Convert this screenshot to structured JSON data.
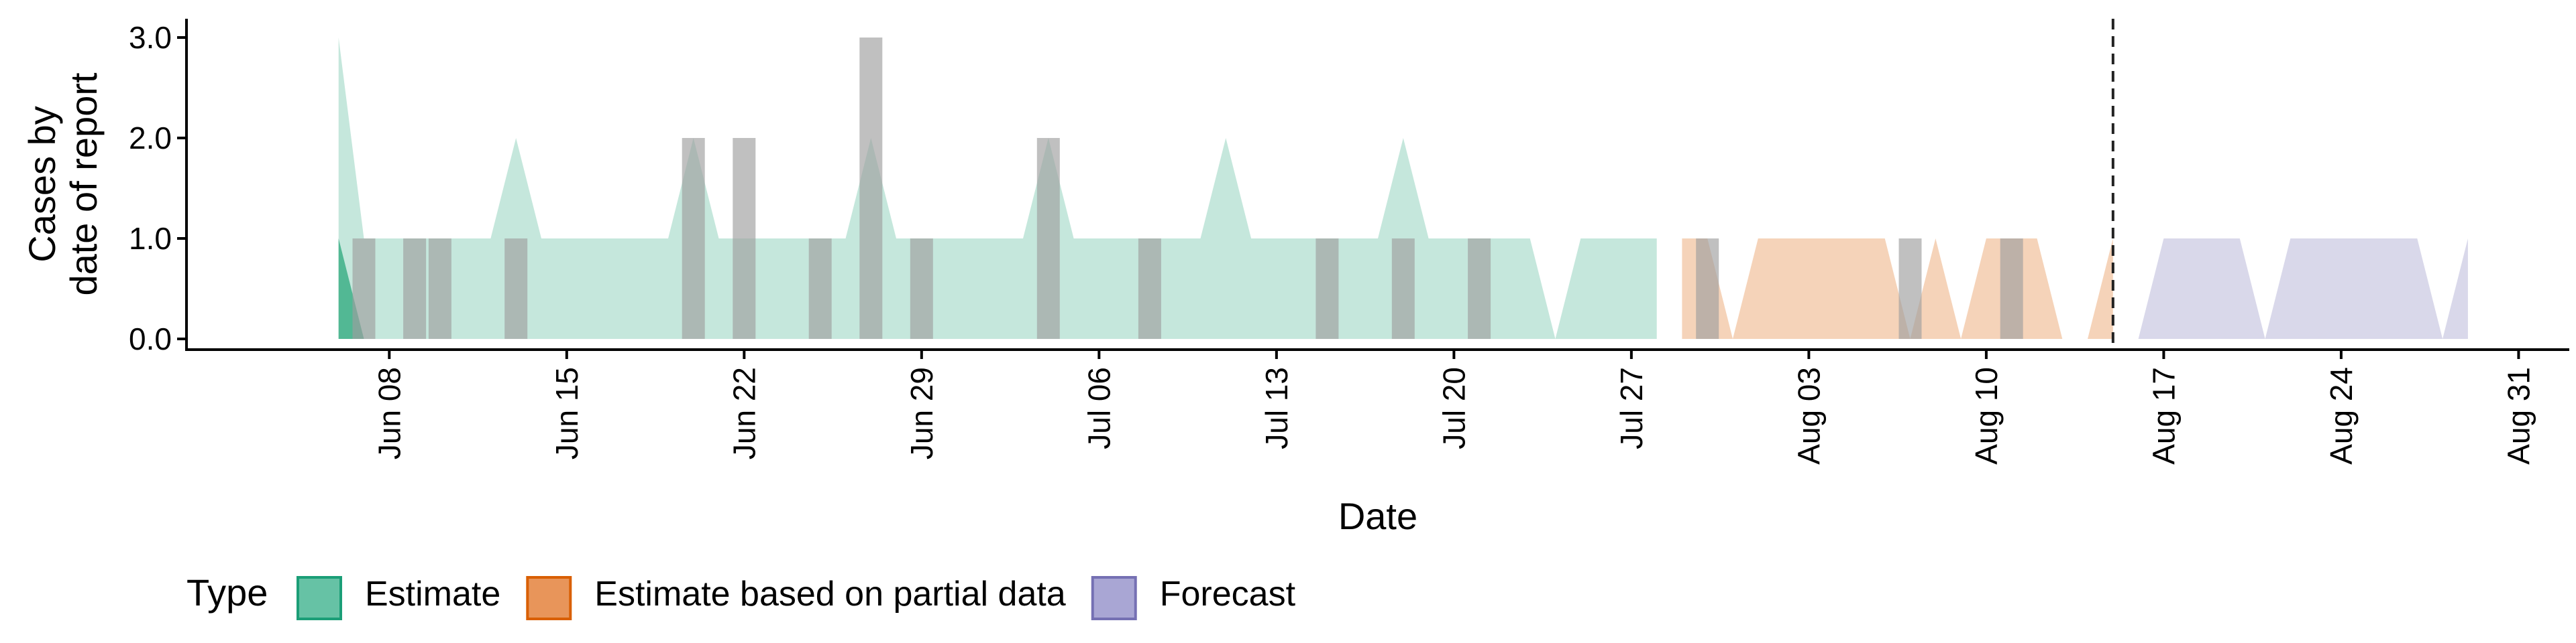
{
  "chart_data": {
    "type": "area",
    "xlabel": "Date",
    "ylabel_lines": [
      "Cases by",
      "date of report"
    ],
    "yticks": [
      "0.0",
      "1.0",
      "2.0",
      "3.0"
    ],
    "ylim": [
      0,
      3.15
    ],
    "xlim": [
      "2020-05-31",
      "2020-09-02"
    ],
    "xticks": [
      {
        "date": "2020-06-08",
        "label": "Jun 08"
      },
      {
        "date": "2020-06-15",
        "label": "Jun 15"
      },
      {
        "date": "2020-06-22",
        "label": "Jun 22"
      },
      {
        "date": "2020-06-29",
        "label": "Jun 29"
      },
      {
        "date": "2020-07-06",
        "label": "Jul 06"
      },
      {
        "date": "2020-07-13",
        "label": "Jul 13"
      },
      {
        "date": "2020-07-20",
        "label": "Jul 20"
      },
      {
        "date": "2020-07-27",
        "label": "Jul 27"
      },
      {
        "date": "2020-08-03",
        "label": "Aug 03"
      },
      {
        "date": "2020-08-10",
        "label": "Aug 10"
      },
      {
        "date": "2020-08-17",
        "label": "Aug 17"
      },
      {
        "date": "2020-08-24",
        "label": "Aug 24"
      },
      {
        "date": "2020-08-31",
        "label": "Aug 31"
      }
    ],
    "vline_date": "2020-08-15",
    "observed_cases": [
      {
        "date": "2020-06-07",
        "value": 1
      },
      {
        "date": "2020-06-09",
        "value": 1
      },
      {
        "date": "2020-06-10",
        "value": 1
      },
      {
        "date": "2020-06-13",
        "value": 1
      },
      {
        "date": "2020-06-20",
        "value": 2
      },
      {
        "date": "2020-06-22",
        "value": 2
      },
      {
        "date": "2020-06-25",
        "value": 1
      },
      {
        "date": "2020-06-27",
        "value": 3
      },
      {
        "date": "2020-06-29",
        "value": 1
      },
      {
        "date": "2020-07-04",
        "value": 2
      },
      {
        "date": "2020-07-08",
        "value": 1
      },
      {
        "date": "2020-07-15",
        "value": 1
      },
      {
        "date": "2020-07-18",
        "value": 1
      },
      {
        "date": "2020-07-21",
        "value": 1
      },
      {
        "date": "2020-07-30",
        "value": 1
      },
      {
        "date": "2020-08-07",
        "value": 1
      },
      {
        "date": "2020-08-11",
        "value": 1
      }
    ],
    "series": [
      {
        "name": "Estimate",
        "color": "#1b9e77",
        "inner_band": [
          {
            "date": "2020-06-06",
            "lower": 0,
            "upper": 1
          },
          {
            "date": "2020-06-07",
            "lower": 0,
            "upper": 0
          }
        ],
        "outer_band": [
          {
            "date": "2020-06-06",
            "lower": 0,
            "upper": 3
          },
          {
            "date": "2020-06-07",
            "lower": 0,
            "upper": 1
          },
          {
            "date": "2020-06-12",
            "lower": 0,
            "upper": 1
          },
          {
            "date": "2020-06-13",
            "lower": 0,
            "upper": 2
          },
          {
            "date": "2020-06-14",
            "lower": 0,
            "upper": 1
          },
          {
            "date": "2020-06-19",
            "lower": 0,
            "upper": 1
          },
          {
            "date": "2020-06-20",
            "lower": 0,
            "upper": 2
          },
          {
            "date": "2020-06-21",
            "lower": 0,
            "upper": 1
          },
          {
            "date": "2020-06-26",
            "lower": 0,
            "upper": 1
          },
          {
            "date": "2020-06-27",
            "lower": 0,
            "upper": 2
          },
          {
            "date": "2020-06-28",
            "lower": 0,
            "upper": 1
          },
          {
            "date": "2020-07-03",
            "lower": 0,
            "upper": 1
          },
          {
            "date": "2020-07-04",
            "lower": 0,
            "upper": 2
          },
          {
            "date": "2020-07-05",
            "lower": 0,
            "upper": 1
          },
          {
            "date": "2020-07-10",
            "lower": 0,
            "upper": 1
          },
          {
            "date": "2020-07-11",
            "lower": 0,
            "upper": 2
          },
          {
            "date": "2020-07-12",
            "lower": 0,
            "upper": 1
          },
          {
            "date": "2020-07-17",
            "lower": 0,
            "upper": 1
          },
          {
            "date": "2020-07-18",
            "lower": 0,
            "upper": 2
          },
          {
            "date": "2020-07-19",
            "lower": 0,
            "upper": 1
          },
          {
            "date": "2020-07-23",
            "lower": 0,
            "upper": 1
          },
          {
            "date": "2020-07-24",
            "lower": 0,
            "upper": 0
          },
          {
            "date": "2020-07-25",
            "lower": 0,
            "upper": 1
          },
          {
            "date": "2020-07-28",
            "lower": 0,
            "upper": 1
          }
        ]
      },
      {
        "name": "Estimate based on partial data",
        "color": "#d95f02",
        "outer_band": [
          {
            "date": "2020-07-29",
            "lower": 0,
            "upper": 1
          },
          {
            "date": "2020-07-30",
            "lower": 0,
            "upper": 1
          },
          {
            "date": "2020-07-31",
            "lower": 0,
            "upper": 0
          },
          {
            "date": "2020-08-01",
            "lower": 0,
            "upper": 1
          },
          {
            "date": "2020-08-06",
            "lower": 0,
            "upper": 1
          },
          {
            "date": "2020-08-07",
            "lower": 0,
            "upper": 0
          },
          {
            "date": "2020-08-08",
            "lower": 0,
            "upper": 1
          },
          {
            "date": "2020-08-09",
            "lower": 0,
            "upper": 0
          },
          {
            "date": "2020-08-10",
            "lower": 0,
            "upper": 1
          },
          {
            "date": "2020-08-12",
            "lower": 0,
            "upper": 1
          },
          {
            "date": "2020-08-13",
            "lower": 0,
            "upper": 0
          },
          {
            "date": "2020-08-14",
            "lower": 0,
            "upper": 0
          },
          {
            "date": "2020-08-15",
            "lower": 0,
            "upper": 1
          }
        ]
      },
      {
        "name": "Forecast",
        "color": "#7570b3",
        "outer_band": [
          {
            "date": "2020-08-16",
            "lower": 0,
            "upper": 0
          },
          {
            "date": "2020-08-17",
            "lower": 0,
            "upper": 1
          },
          {
            "date": "2020-08-20",
            "lower": 0,
            "upper": 1
          },
          {
            "date": "2020-08-21",
            "lower": 0,
            "upper": 0
          },
          {
            "date": "2020-08-22",
            "lower": 0,
            "upper": 1
          },
          {
            "date": "2020-08-27",
            "lower": 0,
            "upper": 1
          },
          {
            "date": "2020-08-28",
            "lower": 0,
            "upper": 0
          },
          {
            "date": "2020-08-29",
            "lower": 0,
            "upper": 1
          }
        ]
      }
    ],
    "legend": {
      "title": "Type",
      "position": "bottom-left",
      "entries": [
        {
          "label": "Estimate",
          "fill": "#66c2a5",
          "stroke": "#1b9e77"
        },
        {
          "label": "Estimate based on partial data",
          "fill": "#e8955a",
          "stroke": "#d95f02"
        },
        {
          "label": "Forecast",
          "fill": "#a9a6d4",
          "stroke": "#7570b3"
        }
      ]
    },
    "grid": false,
    "bar_color": "#9e9e9e"
  }
}
